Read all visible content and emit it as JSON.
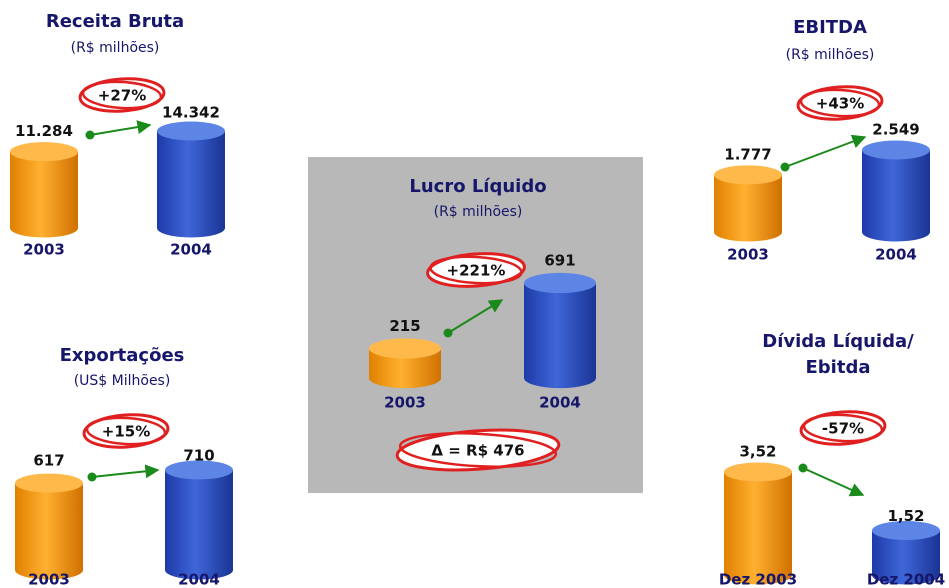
{
  "chart_data": [
    {
      "type": "cylinder",
      "title": [
        "Receita Bruta"
      ],
      "subtitle": "(R$ milhões)",
      "categories": [
        "2003",
        "2004"
      ],
      "values": [
        11284,
        14342
      ],
      "value_labels": [
        "11.284",
        "14.342"
      ],
      "change": "+27%",
      "colors": [
        "#f59a12",
        "#2f55c8"
      ]
    },
    {
      "type": "cylinder",
      "title": [
        "EBITDA"
      ],
      "subtitle": "(R$ milhões)",
      "categories": [
        "2003",
        "2004"
      ],
      "values": [
        1777,
        2549
      ],
      "value_labels": [
        "1.777",
        "2.549"
      ],
      "change": "+43%",
      "colors": [
        "#f59a12",
        "#2f55c8"
      ]
    },
    {
      "type": "cylinder",
      "title": [
        "Lucro Líquido"
      ],
      "subtitle": "(R$ milhões)",
      "categories": [
        "2003",
        "2004"
      ],
      "values": [
        215,
        691
      ],
      "change": "+221%",
      "annotation": "Δ = R$ 476",
      "colors": [
        "#f59a12",
        "#2f55c8"
      ]
    },
    {
      "type": "cylinder",
      "title": [
        "Exportações"
      ],
      "subtitle": "(US$ Milhões)",
      "categories": [
        "2003",
        "2004"
      ],
      "values": [
        617,
        710
      ],
      "change": "+15%",
      "colors": [
        "#f59a12",
        "#2f55c8"
      ]
    },
    {
      "type": "cylinder",
      "title": [
        "Dívida Líquida/",
        "Ebitda"
      ],
      "categories": [
        "Dez 2003",
        "Dez 2004"
      ],
      "values": [
        3.52,
        1.52
      ],
      "value_labels": [
        "3,52",
        "1,52"
      ],
      "change": "-57%",
      "colors": [
        "#f59a12",
        "#2f55c8"
      ]
    }
  ]
}
